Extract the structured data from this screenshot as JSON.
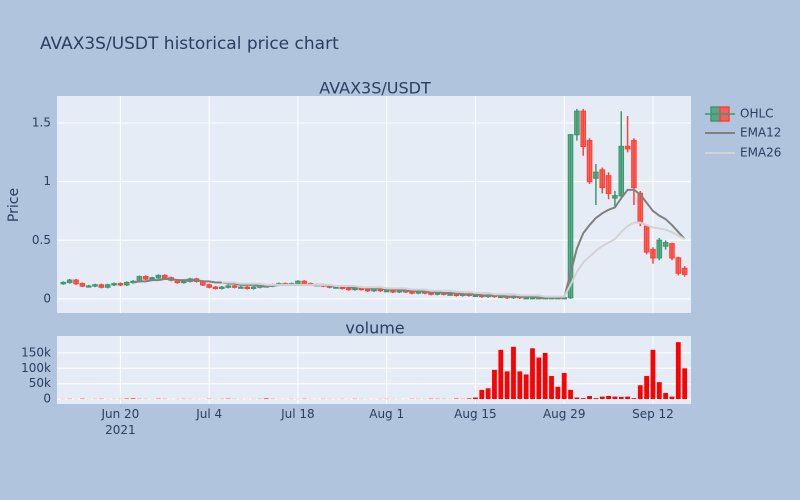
{
  "chart_data": {
    "type": "candlestick",
    "title": "AVAX3S/USDT historical price chart",
    "subtitle": "AVAX3S/USDT",
    "ylabel": "Price",
    "ohlc_name": "OHLC",
    "increasing_color": "#3D9970",
    "decreasing_color": "#FF4136",
    "x": [
      "2021-06-11",
      "2021-06-12",
      "2021-06-13",
      "2021-06-14",
      "2021-06-15",
      "2021-06-16",
      "2021-06-17",
      "2021-06-18",
      "2021-06-19",
      "2021-06-20",
      "2021-06-21",
      "2021-06-22",
      "2021-06-23",
      "2021-06-24",
      "2021-06-25",
      "2021-06-26",
      "2021-06-27",
      "2021-06-28",
      "2021-06-29",
      "2021-06-30",
      "2021-07-01",
      "2021-07-02",
      "2021-07-03",
      "2021-07-04",
      "2021-07-05",
      "2021-07-06",
      "2021-07-07",
      "2021-07-08",
      "2021-07-09",
      "2021-07-10",
      "2021-07-11",
      "2021-07-12",
      "2021-07-13",
      "2021-07-14",
      "2021-07-15",
      "2021-07-16",
      "2021-07-17",
      "2021-07-18",
      "2021-07-19",
      "2021-07-20",
      "2021-07-21",
      "2021-07-22",
      "2021-07-23",
      "2021-07-24",
      "2021-07-25",
      "2021-07-26",
      "2021-07-27",
      "2021-07-28",
      "2021-07-29",
      "2021-07-30",
      "2021-07-31",
      "2021-08-01",
      "2021-08-02",
      "2021-08-03",
      "2021-08-04",
      "2021-08-05",
      "2021-08-06",
      "2021-08-07",
      "2021-08-08",
      "2021-08-09",
      "2021-08-10",
      "2021-08-11",
      "2021-08-12",
      "2021-08-13",
      "2021-08-14",
      "2021-08-15",
      "2021-08-16",
      "2021-08-17",
      "2021-08-18",
      "2021-08-19",
      "2021-08-20",
      "2021-08-21",
      "2021-08-22",
      "2021-08-23",
      "2021-08-24",
      "2021-08-25",
      "2021-08-26",
      "2021-08-27",
      "2021-08-28",
      "2021-08-29",
      "2021-08-30",
      "2021-08-31",
      "2021-09-01",
      "2021-09-02",
      "2021-09-03",
      "2021-09-04",
      "2021-09-05",
      "2021-09-06",
      "2021-09-07",
      "2021-09-08",
      "2021-09-09",
      "2021-09-10",
      "2021-09-11",
      "2021-09-12",
      "2021-09-13",
      "2021-09-14",
      "2021-09-15",
      "2021-09-16",
      "2021-09-17"
    ],
    "open": [
      0.13,
      0.14,
      0.16,
      0.13,
      0.11,
      0.11,
      0.12,
      0.1,
      0.12,
      0.13,
      0.12,
      0.14,
      0.15,
      0.19,
      0.17,
      0.18,
      0.2,
      0.18,
      0.16,
      0.14,
      0.15,
      0.17,
      0.15,
      0.12,
      0.1,
      0.09,
      0.1,
      0.11,
      0.1,
      0.1,
      0.09,
      0.1,
      0.11,
      0.11,
      0.12,
      0.13,
      0.12,
      0.13,
      0.15,
      0.13,
      0.12,
      0.12,
      0.11,
      0.1,
      0.1,
      0.09,
      0.08,
      0.09,
      0.08,
      0.07,
      0.08,
      0.07,
      0.07,
      0.06,
      0.07,
      0.06,
      0.05,
      0.06,
      0.05,
      0.04,
      0.05,
      0.04,
      0.04,
      0.03,
      0.04,
      0.03,
      0.03,
      0.02,
      0.03,
      0.02,
      0.02,
      0.01,
      0.02,
      0.01,
      0.01,
      0.01,
      0.01,
      0.01,
      0.01,
      0.01,
      0.01,
      1.4,
      1.6,
      1.35,
      1.03,
      1.1,
      1.05,
      0.86,
      0.88,
      1.3,
      1.35,
      0.9,
      0.62,
      0.42,
      0.35,
      0.45,
      0.47,
      0.35,
      0.26
    ],
    "high": [
      0.15,
      0.17,
      0.17,
      0.14,
      0.12,
      0.13,
      0.13,
      0.13,
      0.14,
      0.14,
      0.15,
      0.16,
      0.2,
      0.2,
      0.19,
      0.21,
      0.21,
      0.19,
      0.17,
      0.16,
      0.18,
      0.18,
      0.16,
      0.13,
      0.11,
      0.11,
      0.12,
      0.12,
      0.11,
      0.11,
      0.11,
      0.12,
      0.12,
      0.13,
      0.14,
      0.14,
      0.14,
      0.16,
      0.16,
      0.14,
      0.13,
      0.13,
      0.12,
      0.11,
      0.11,
      0.1,
      0.1,
      0.1,
      0.09,
      0.09,
      0.09,
      0.08,
      0.08,
      0.08,
      0.08,
      0.07,
      0.07,
      0.07,
      0.06,
      0.06,
      0.06,
      0.05,
      0.05,
      0.05,
      0.05,
      0.04,
      0.04,
      0.04,
      0.04,
      0.03,
      0.03,
      0.03,
      0.03,
      0.02,
      0.02,
      0.02,
      0.02,
      0.02,
      0.02,
      0.02,
      1.4,
      1.62,
      1.62,
      1.37,
      1.15,
      1.12,
      1.08,
      0.92,
      1.6,
      1.56,
      1.37,
      0.92,
      0.63,
      0.44,
      0.52,
      0.5,
      0.48,
      0.36,
      0.28
    ],
    "low": [
      0.12,
      0.13,
      0.12,
      0.1,
      0.1,
      0.1,
      0.09,
      0.09,
      0.11,
      0.11,
      0.11,
      0.13,
      0.14,
      0.16,
      0.16,
      0.17,
      0.17,
      0.15,
      0.13,
      0.13,
      0.14,
      0.14,
      0.11,
      0.09,
      0.08,
      0.08,
      0.09,
      0.09,
      0.09,
      0.08,
      0.08,
      0.09,
      0.1,
      0.1,
      0.11,
      0.11,
      0.11,
      0.12,
      0.12,
      0.11,
      0.11,
      0.1,
      0.09,
      0.09,
      0.08,
      0.07,
      0.07,
      0.07,
      0.06,
      0.06,
      0.06,
      0.06,
      0.05,
      0.05,
      0.05,
      0.04,
      0.04,
      0.04,
      0.03,
      0.03,
      0.03,
      0.03,
      0.02,
      0.02,
      0.02,
      0.02,
      0.01,
      0.01,
      0.01,
      0.01,
      0,
      0,
      0,
      0,
      0,
      0,
      0,
      0,
      0,
      0,
      0,
      1.35,
      1.22,
      0.98,
      0.8,
      0.9,
      0.85,
      0.78,
      0.85,
      1.25,
      0.8,
      0.62,
      0.38,
      0.3,
      0.33,
      0.42,
      0.33,
      0.2,
      0.19
    ],
    "close": [
      0.14,
      0.16,
      0.13,
      0.11,
      0.11,
      0.12,
      0.1,
      0.12,
      0.13,
      0.12,
      0.14,
      0.15,
      0.19,
      0.17,
      0.18,
      0.2,
      0.18,
      0.16,
      0.14,
      0.15,
      0.17,
      0.15,
      0.12,
      0.1,
      0.09,
      0.1,
      0.11,
      0.1,
      0.1,
      0.09,
      0.1,
      0.11,
      0.11,
      0.12,
      0.13,
      0.12,
      0.13,
      0.15,
      0.13,
      0.12,
      0.12,
      0.11,
      0.1,
      0.1,
      0.09,
      0.08,
      0.09,
      0.08,
      0.07,
      0.08,
      0.07,
      0.07,
      0.06,
      0.07,
      0.06,
      0.05,
      0.06,
      0.05,
      0.04,
      0.05,
      0.04,
      0.04,
      0.03,
      0.04,
      0.03,
      0.03,
      0.02,
      0.03,
      0.02,
      0.02,
      0.01,
      0.02,
      0.01,
      0.01,
      0.01,
      0.01,
      0.01,
      0.01,
      0.01,
      0.01,
      1.4,
      1.6,
      1.3,
      1.0,
      1.08,
      0.95,
      0.9,
      0.88,
      1.3,
      1.28,
      0.95,
      0.65,
      0.4,
      0.35,
      0.5,
      0.48,
      0.35,
      0.22,
      0.21
    ],
    "series": [
      {
        "name": "EMA12",
        "color": "#808080",
        "values": [
          null,
          null,
          null,
          null,
          null,
          null,
          null,
          null,
          null,
          null,
          null,
          0.14,
          0.15,
          0.15,
          0.16,
          0.16,
          0.17,
          0.17,
          0.16,
          0.16,
          0.16,
          0.16,
          0.15,
          0.15,
          0.14,
          0.14,
          0.13,
          0.13,
          0.12,
          0.12,
          0.12,
          0.11,
          0.11,
          0.11,
          0.12,
          0.12,
          0.12,
          0.12,
          0.12,
          0.12,
          0.12,
          0.12,
          0.11,
          0.11,
          0.11,
          0.1,
          0.1,
          0.1,
          0.09,
          0.09,
          0.09,
          0.08,
          0.08,
          0.08,
          0.07,
          0.07,
          0.07,
          0.06,
          0.06,
          0.06,
          0.05,
          0.05,
          0.05,
          0.04,
          0.04,
          0.04,
          0.03,
          0.03,
          0.03,
          0.03,
          0.02,
          0.02,
          0.02,
          0.02,
          0.02,
          0.01,
          0.01,
          0.01,
          0.01,
          0.01,
          0.22,
          0.43,
          0.56,
          0.63,
          0.69,
          0.73,
          0.76,
          0.78,
          0.86,
          0.93,
          0.93,
          0.89,
          0.82,
          0.75,
          0.71,
          0.68,
          0.63,
          0.57,
          0.51
        ]
      },
      {
        "name": "EMA26",
        "color": "#d3d3d3",
        "values": [
          null,
          null,
          null,
          null,
          null,
          null,
          null,
          null,
          null,
          null,
          null,
          null,
          null,
          null,
          null,
          null,
          null,
          null,
          null,
          null,
          null,
          null,
          null,
          null,
          null,
          0.14,
          0.14,
          0.14,
          0.13,
          0.13,
          0.13,
          0.13,
          0.12,
          0.12,
          0.12,
          0.12,
          0.12,
          0.12,
          0.12,
          0.12,
          0.12,
          0.12,
          0.12,
          0.11,
          0.11,
          0.11,
          0.11,
          0.1,
          0.1,
          0.1,
          0.1,
          0.09,
          0.09,
          0.09,
          0.09,
          0.08,
          0.08,
          0.08,
          0.07,
          0.07,
          0.07,
          0.07,
          0.06,
          0.06,
          0.06,
          0.05,
          0.05,
          0.05,
          0.04,
          0.04,
          0.04,
          0.04,
          0.03,
          0.03,
          0.03,
          0.03,
          0.02,
          0.02,
          0.02,
          0.02,
          0.12,
          0.23,
          0.31,
          0.36,
          0.41,
          0.45,
          0.48,
          0.51,
          0.57,
          0.62,
          0.65,
          0.65,
          0.63,
          0.61,
          0.6,
          0.59,
          0.57,
          0.54,
          0.51
        ]
      }
    ],
    "xlim": [
      "2021-06-10",
      "2021-09-18"
    ],
    "xticks": [
      {
        "value": "2021-06-20",
        "label": "Jun 20\n2021"
      },
      {
        "value": "2021-07-04",
        "label": "Jul 4"
      },
      {
        "value": "2021-07-18",
        "label": "Jul 18"
      },
      {
        "value": "2021-08-01",
        "label": "Aug 1"
      },
      {
        "value": "2021-08-15",
        "label": "Aug 15"
      },
      {
        "value": "2021-08-29",
        "label": "Aug 29"
      },
      {
        "value": "2021-09-12",
        "label": "Sep 12"
      }
    ],
    "ylim": [
      -0.12,
      1.73
    ],
    "yticks": [
      0,
      0.5,
      1,
      1.5
    ],
    "grid": true,
    "volume": {
      "type": "bar",
      "title": "volume",
      "color": "#ff0000",
      "values": [
        500,
        800,
        300,
        1200,
        400,
        600,
        900,
        300,
        500,
        700,
        1500,
        2000,
        800,
        600,
        400,
        1100,
        700,
        300,
        500,
        800,
        600,
        400,
        300,
        900,
        500,
        700,
        1200,
        600,
        400,
        300,
        500,
        800,
        2000,
        700,
        400,
        300,
        600,
        500,
        900,
        400,
        300,
        700,
        500,
        400,
        600,
        300,
        800,
        500,
        400,
        300,
        600,
        700,
        500,
        400,
        300,
        800,
        600,
        500,
        1200,
        900,
        700,
        500,
        1500,
        800,
        2000,
        5000,
        30000,
        35000,
        95000,
        160000,
        90000,
        170000,
        90000,
        80000,
        165000,
        135000,
        150000,
        75000,
        40000,
        85000,
        30000,
        5000,
        3000,
        10000,
        3000,
        8000,
        10000,
        8000,
        7000,
        8000,
        3000,
        45000,
        75000,
        160000,
        55000,
        20000,
        8000,
        185000,
        100000
      ],
      "ylim": [
        -16000,
        205000
      ],
      "yticks": [
        0,
        {
          "value": 50000,
          "label": "50k"
        },
        {
          "value": 100000,
          "label": "100k"
        },
        {
          "value": 150000,
          "label": "150k"
        }
      ]
    }
  }
}
